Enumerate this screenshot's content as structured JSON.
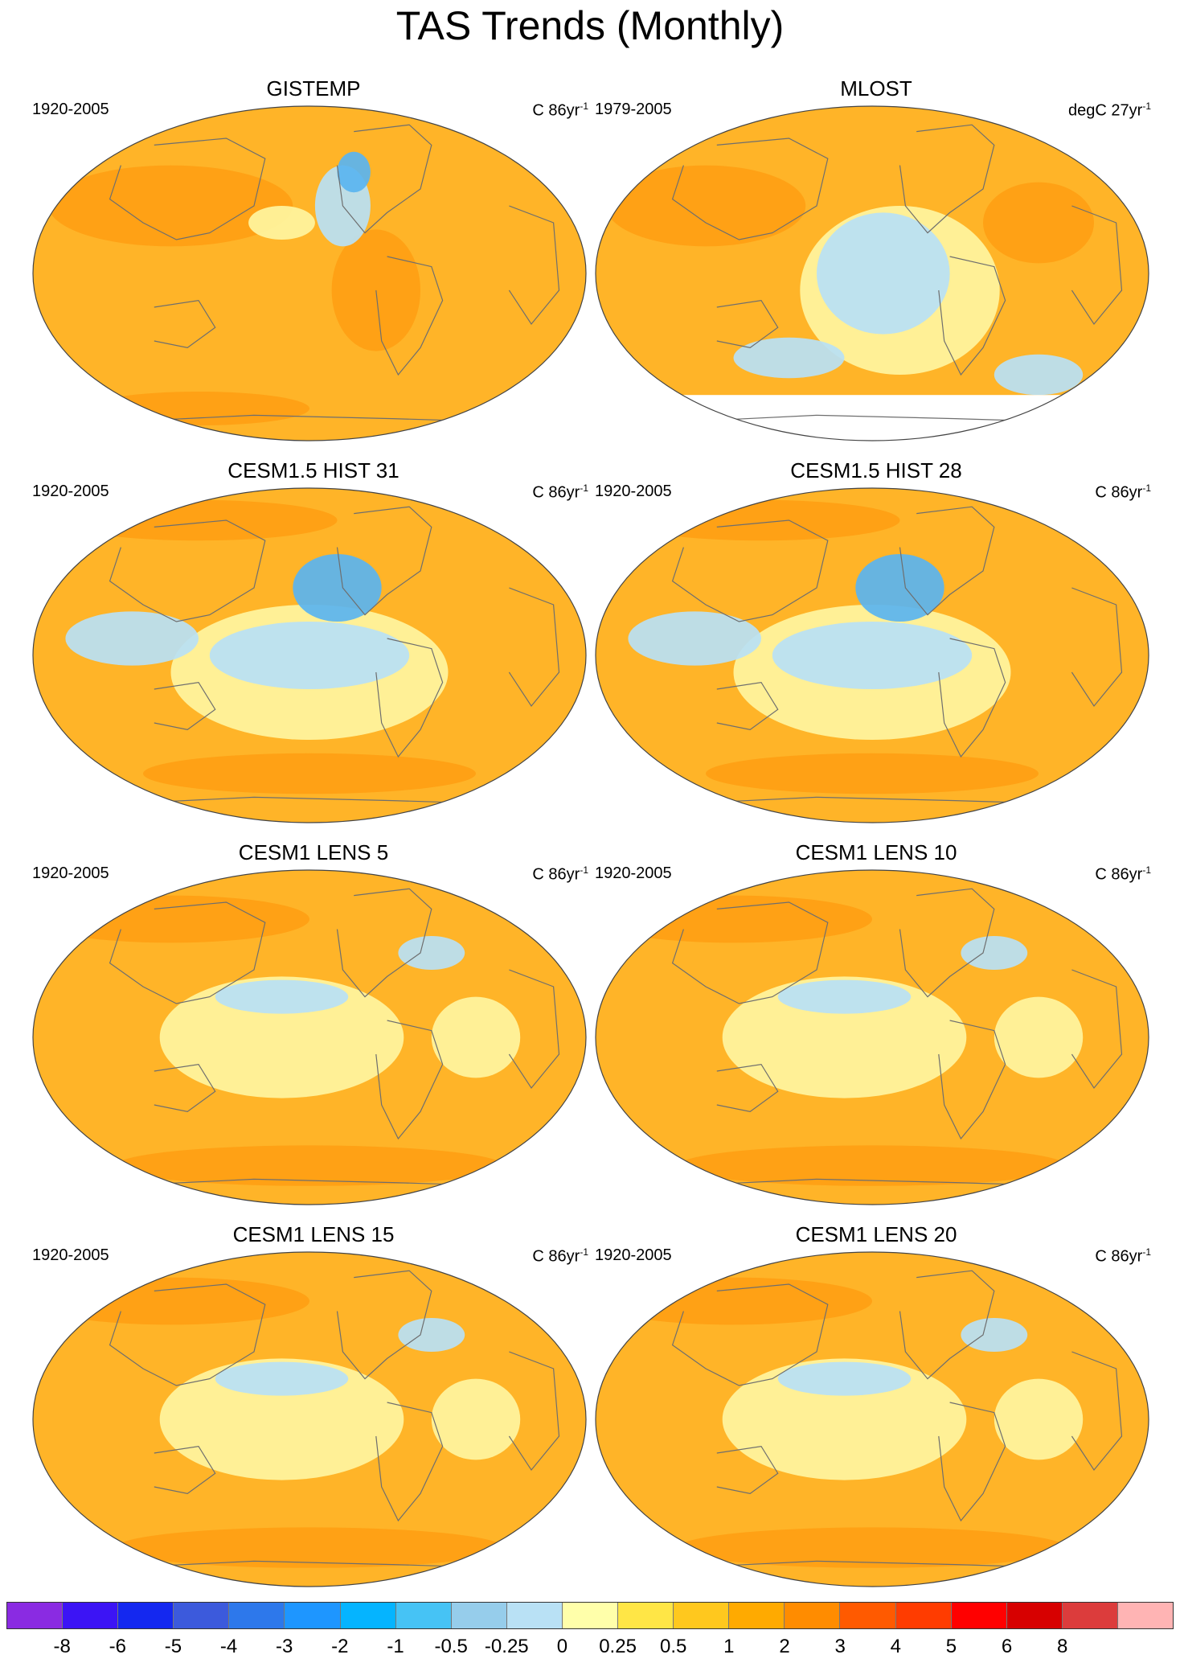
{
  "title": "TAS Trends (Monthly)",
  "panels": [
    {
      "title": "GISTEMP",
      "period": "1920-2005",
      "units_prefix": "C 86yr",
      "units_exp": "-1",
      "style": "obs1"
    },
    {
      "title": "MLOST",
      "period": "1979-2005",
      "units_prefix": "degC 27yr",
      "units_exp": "-1",
      "style": "obs2"
    },
    {
      "title": "CESM1.5 HIST 31",
      "period": "1920-2005",
      "units_prefix": "C 86yr",
      "units_exp": "-1",
      "style": "model"
    },
    {
      "title": "CESM1.5 HIST 28",
      "period": "1920-2005",
      "units_prefix": "C 86yr",
      "units_exp": "-1",
      "style": "model"
    },
    {
      "title": "CESM1 LENS 5",
      "period": "1920-2005",
      "units_prefix": "C 86yr",
      "units_exp": "-1",
      "style": "model2"
    },
    {
      "title": "CESM1 LENS 10",
      "period": "1920-2005",
      "units_prefix": "C 86yr",
      "units_exp": "-1",
      "style": "model2"
    },
    {
      "title": "CESM1 LENS 15",
      "period": "1920-2005",
      "units_prefix": "C 86yr",
      "units_exp": "-1",
      "style": "model2"
    },
    {
      "title": "CESM1 LENS 20",
      "period": "1920-2005",
      "units_prefix": "C 86yr",
      "units_exp": "-1",
      "style": "model2"
    }
  ],
  "colorbar": {
    "colors": [
      "#8a2be2",
      "#3c14f5",
      "#1428f0",
      "#3c5adc",
      "#2d78eb",
      "#1e96ff",
      "#05b4ff",
      "#46c3f5",
      "#96cdeb",
      "#b9e1f5",
      "#ffffaa",
      "#ffe646",
      "#ffc81e",
      "#ffaa00",
      "#ff8c00",
      "#ff5a00",
      "#ff3c00",
      "#ff0000",
      "#d70000",
      "#dc3c3c",
      "#ffb4b4"
    ],
    "labels": [
      "-8",
      "-6",
      "-5",
      "-4",
      "-3",
      "-2",
      "-1",
      "-0.5",
      "-0.25",
      "0",
      "0.25",
      "0.5",
      "1",
      "2",
      "3",
      "4",
      "5",
      "6",
      "8"
    ]
  },
  "palette": {
    "ocean_warm": "#ffb428",
    "land_warm": "#ffa014",
    "light": "#fff5a0",
    "cool": "#b9e1f5",
    "cooler": "#5ab4f0",
    "coast": "#6e6e6e"
  }
}
